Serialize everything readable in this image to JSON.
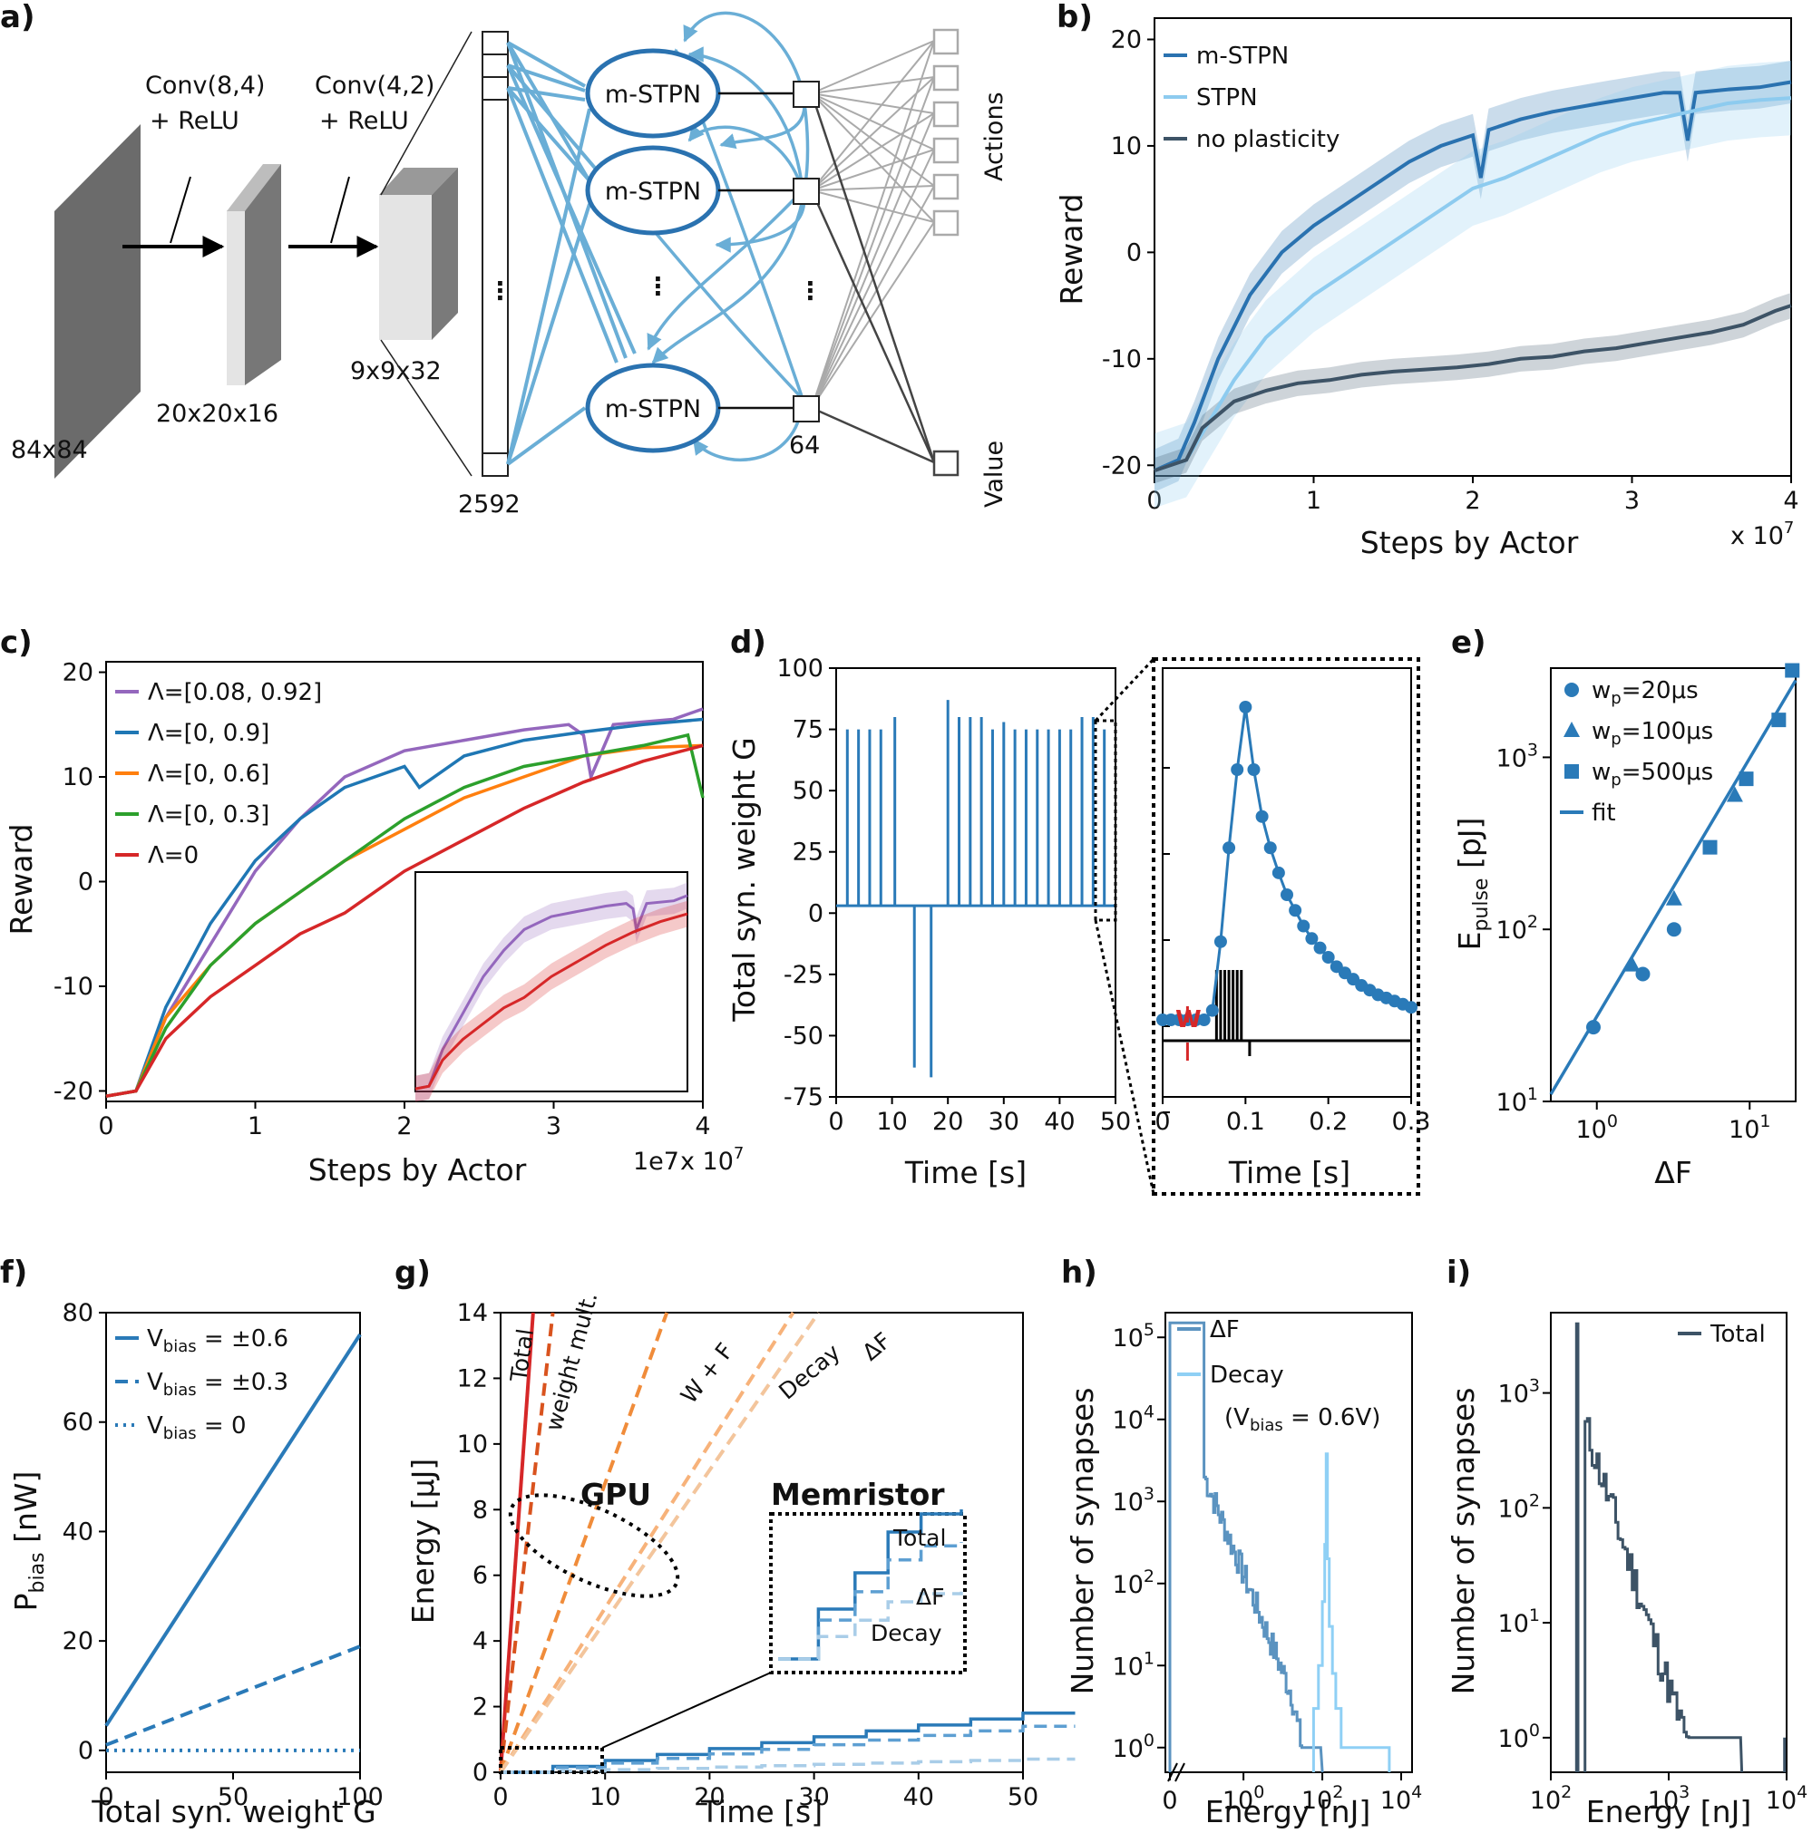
{
  "panels": {
    "a": {
      "label": "a)",
      "conv1": [
        "Conv(8,4)",
        "+ ReLU"
      ],
      "conv2": [
        "Conv(4,2)",
        "+ ReLU"
      ],
      "input_size": "84x84",
      "size1": "20x20x16",
      "size2": "9x9x32",
      "flat_size": "2592",
      "hidden_size": "64",
      "unit_label": "m-STPN",
      "dots": "⋮",
      "actions_label": "Actions",
      "value_label": "Value"
    },
    "b": {
      "label": "b)",
      "xlabel": "Steps by Actor",
      "ylabel": "Reward",
      "exponent": "x 10",
      "exponent_power": "7"
    },
    "c": {
      "label": "c)",
      "xlabel": "Steps by Actor",
      "ylabel": "Reward",
      "offset_text": "1e7",
      "exponent": "x 10",
      "exponent_power": "7"
    },
    "d": {
      "label": "d)",
      "xlabel": "Time [s]",
      "ylabel": "Total syn. weight G",
      "inset_xlabel": "Time [s]",
      "inset_marker": "W"
    },
    "e": {
      "label": "e)",
      "xlabel": "ΔF",
      "ylabel_main": "E",
      "ylabel_sub": "pulse",
      "ylabel_unit": " [pJ]"
    },
    "f": {
      "label": "f)",
      "xlabel": "Total syn. weight G",
      "ylabel_main": "P",
      "ylabel_sub": "bias",
      "ylabel_unit": " [nW]"
    },
    "g": {
      "label": "g)",
      "xlabel": "Time [s]",
      "ylabel": "Energy [μJ]",
      "gpu_label": "GPU",
      "memristor_label": "Memristor",
      "line_labels": [
        "Total",
        "weight mult.",
        "W + F",
        "Decay",
        "ΔF"
      ],
      "inset_labels": [
        "Total",
        "ΔF",
        "Decay"
      ]
    },
    "h": {
      "label": "h)",
      "xlabel": "Energy [nJ]",
      "ylabel": "Number of synapses",
      "decay_note": "(V",
      "decay_note_sub": "bias",
      "decay_note_end": " = 0.6V)"
    },
    "i": {
      "label": "i)",
      "xlabel": "Energy [nJ]",
      "ylabel": "Number of synapses"
    }
  },
  "chart_data": [
    {
      "panel": "b",
      "type": "line",
      "xlim": [
        0,
        4
      ],
      "ylim": [
        -21,
        22
      ],
      "xticks": [
        "0",
        "1",
        "2",
        "3",
        "4"
      ],
      "yticks": [
        "-20",
        "-10",
        "0",
        "10",
        "20"
      ],
      "legend": "top-left",
      "series": [
        {
          "name": "m-STPN",
          "color": "#2a72b0",
          "x": [
            0,
            0.15,
            0.25,
            0.4,
            0.6,
            0.8,
            1.0,
            1.2,
            1.4,
            1.6,
            1.8,
            2.0,
            2.05,
            2.1,
            2.3,
            2.5,
            2.8,
            3.0,
            3.2,
            3.3,
            3.35,
            3.4,
            3.6,
            3.8,
            4.0
          ],
          "y": [
            -20.5,
            -19.5,
            -16,
            -10,
            -4,
            0,
            2.5,
            4.5,
            6.5,
            8.5,
            10,
            11,
            7,
            11.5,
            12.5,
            13.2,
            14,
            14.5,
            15,
            15,
            10.5,
            15,
            15.3,
            15.5,
            16
          ]
        },
        {
          "name": "STPN",
          "color": "#8dcbef",
          "x": [
            0,
            0.2,
            0.3,
            0.5,
            0.7,
            1.0,
            1.2,
            1.4,
            1.6,
            1.8,
            2.0,
            2.2,
            2.5,
            2.8,
            3.0,
            3.3,
            3.6,
            3.8,
            4.0
          ],
          "y": [
            -20.5,
            -19.5,
            -17,
            -12,
            -8,
            -4,
            -2,
            0,
            2,
            4,
            6,
            7,
            9,
            11,
            12,
            13,
            14,
            14.3,
            14.5
          ]
        },
        {
          "name": "no plasticity",
          "color": "#3d5366",
          "x": [
            0,
            0.2,
            0.3,
            0.5,
            0.7,
            0.9,
            1.1,
            1.3,
            1.5,
            1.7,
            1.9,
            2.1,
            2.3,
            2.5,
            2.7,
            2.9,
            3.1,
            3.3,
            3.5,
            3.7,
            3.9,
            4.0
          ],
          "y": [
            -20.5,
            -19.5,
            -16.5,
            -14,
            -13,
            -12.3,
            -12,
            -11.5,
            -11.2,
            -11,
            -10.8,
            -10.5,
            -10,
            -9.8,
            -9.3,
            -9,
            -8.5,
            -8,
            -7.5,
            -6.8,
            -5.5,
            -5
          ]
        }
      ]
    },
    {
      "panel": "c",
      "type": "line",
      "xlim": [
        0,
        4
      ],
      "ylim": [
        -21,
        21
      ],
      "xticks": [
        "0",
        "1",
        "2",
        "3",
        "4"
      ],
      "yticks": [
        "-20",
        "-10",
        "0",
        "10",
        "20"
      ],
      "legend": "top-left",
      "series": [
        {
          "name": "Λ=[0.08, 0.92]",
          "color": "#9467bd",
          "x": [
            0,
            0.2,
            0.4,
            0.7,
            1.0,
            1.3,
            1.6,
            2.0,
            2.4,
            2.8,
            3.1,
            3.2,
            3.25,
            3.4,
            3.8,
            4.0
          ],
          "y": [
            -20.5,
            -20,
            -13,
            -6,
            1,
            6,
            10,
            12.5,
            13.5,
            14.5,
            15,
            14,
            10,
            15,
            15.5,
            16.5
          ]
        },
        {
          "name": "Λ=[0, 0.9]",
          "color": "#1f77b4",
          "x": [
            0,
            0.2,
            0.4,
            0.7,
            1.0,
            1.3,
            1.6,
            2.0,
            2.1,
            2.4,
            2.8,
            3.2,
            3.6,
            4.0
          ],
          "y": [
            -20.5,
            -20,
            -12,
            -4,
            2,
            6,
            9,
            11,
            9,
            12,
            13.5,
            14.3,
            15,
            15.5
          ]
        },
        {
          "name": "Λ=[0, 0.6]",
          "color": "#ff7f0e",
          "x": [
            0,
            0.2,
            0.4,
            0.7,
            1.0,
            1.3,
            1.6,
            2.0,
            2.4,
            2.8,
            3.0,
            3.2,
            3.6,
            4.0
          ],
          "y": [
            -20.5,
            -20,
            -13,
            -8,
            -4,
            -1,
            2,
            5,
            8,
            10,
            11,
            12,
            12.8,
            13
          ]
        },
        {
          "name": "Λ=[0, 0.3]",
          "color": "#2ca02c",
          "x": [
            0,
            0.2,
            0.4,
            0.7,
            1.0,
            1.3,
            1.6,
            2.0,
            2.4,
            2.8,
            3.2,
            3.6,
            3.9,
            4.0
          ],
          "y": [
            -20.5,
            -20,
            -14,
            -8,
            -4,
            -1,
            2,
            6,
            9,
            11,
            12,
            13,
            14,
            8
          ]
        },
        {
          "name": "Λ=0",
          "color": "#d62728",
          "x": [
            0,
            0.2,
            0.4,
            0.7,
            1.0,
            1.3,
            1.6,
            2.0,
            2.4,
            2.8,
            3.2,
            3.6,
            4.0
          ],
          "y": [
            -20.5,
            -20,
            -15,
            -11,
            -8,
            -5,
            -3,
            1,
            4,
            7,
            9.5,
            11.5,
            13
          ]
        }
      ]
    },
    {
      "panel": "d",
      "type": "line",
      "xlim": [
        0,
        50
      ],
      "ylim": [
        -75,
        100
      ],
      "xticks": [
        "0",
        "10",
        "20",
        "30",
        "40",
        "50"
      ],
      "yticks": [
        "-75",
        "-50",
        "-25",
        "0",
        "25",
        "50",
        "75",
        "100"
      ],
      "spike_times": [
        2,
        4,
        6,
        8,
        10.5,
        20,
        22,
        24,
        26,
        28,
        30,
        32,
        34,
        36,
        38,
        40,
        42,
        44,
        46,
        48
      ],
      "spike_heights": [
        75,
        75,
        75,
        75,
        80,
        87,
        80,
        80,
        80,
        75,
        78,
        75,
        75,
        75,
        75,
        75,
        75,
        80,
        80,
        75
      ],
      "baseline": 3,
      "dip_times": [
        14,
        17
      ],
      "dip_values": [
        -63,
        -67
      ],
      "inset": {
        "xlim": [
          0,
          0.3
        ],
        "xticks": [
          "0",
          "0.1",
          "0.2",
          "0.3"
        ],
        "x": [
          0,
          0.01,
          0.02,
          0.03,
          0.04,
          0.05,
          0.06,
          0.07,
          0.08,
          0.09,
          0.1,
          0.11,
          0.12,
          0.13,
          0.14,
          0.15,
          0.16,
          0.17,
          0.18,
          0.19,
          0.2,
          0.21,
          0.22,
          0.23,
          0.24,
          0.25,
          0.26,
          0.27,
          0.28,
          0.29,
          0.3
        ],
        "y": [
          0,
          0,
          0,
          0,
          0,
          0,
          3,
          25,
          55,
          80,
          100,
          80,
          65,
          55,
          47,
          40,
          35,
          30,
          26,
          23,
          20,
          17,
          15,
          13,
          11,
          9.5,
          8,
          7,
          6,
          5,
          4
        ]
      }
    },
    {
      "panel": "e",
      "type": "scatter",
      "xscale": "log",
      "yscale": "log",
      "xlim": [
        0.5,
        20
      ],
      "ylim": [
        10,
        3300
      ],
      "legend": "top-left",
      "series": [
        {
          "name": "wp=20μs",
          "marker": "circle",
          "x": [
            0.95,
            2.0,
            3.2
          ],
          "y": [
            27,
            55,
            100
          ]
        },
        {
          "name": "wp=100μs",
          "marker": "triangle",
          "x": [
            1.7,
            3.2,
            8.0
          ],
          "y": [
            62,
            150,
            600
          ]
        },
        {
          "name": "wp=500μs",
          "marker": "square",
          "x": [
            5.5,
            9.5,
            15.5,
            19
          ],
          "y": [
            300,
            750,
            1650,
            3200
          ]
        },
        {
          "name": "fit",
          "x": [
            0.5,
            20
          ],
          "y": [
            11,
            2800
          ]
        }
      ]
    },
    {
      "panel": "f",
      "type": "line",
      "xlim": [
        0,
        100
      ],
      "ylim": [
        -4,
        80
      ],
      "xticks": [
        "0",
        "50",
        "100"
      ],
      "yticks": [
        "0",
        "20",
        "40",
        "60",
        "80"
      ],
      "legend": "top-left",
      "series": [
        {
          "name": "Vbias = ±0.6",
          "style": "solid",
          "x": [
            0,
            100
          ],
          "y": [
            4.5,
            76
          ]
        },
        {
          "name": "Vbias = ±0.3",
          "style": "dashed",
          "x": [
            0,
            100
          ],
          "y": [
            1,
            19
          ]
        },
        {
          "name": "Vbias = 0",
          "style": "dotted",
          "x": [
            0,
            100
          ],
          "y": [
            0,
            0
          ]
        }
      ]
    },
    {
      "panel": "g",
      "type": "line",
      "xlim": [
        0,
        50
      ],
      "ylim": [
        0,
        14
      ],
      "xticks": [
        "0",
        "10",
        "20",
        "30",
        "40",
        "50"
      ],
      "yticks": [
        "0",
        "2",
        "4",
        "6",
        "8",
        "10",
        "12",
        "14"
      ],
      "gpu_slopes": {
        "Total": 4.5,
        "weight mult.": 2.8,
        "W + F": 0.88,
        "Decay": 0.5,
        "ΔF": 0.46
      },
      "memristor_end": {
        "Total": 1.8,
        "ΔF": 1.4,
        "Decay": 0.4
      }
    },
    {
      "panel": "h",
      "type": "histogram",
      "xscale": "log",
      "yscale": "log",
      "xticks": [
        "0",
        "10^0",
        "10^2",
        "10^4"
      ],
      "yticks": [
        "10^0",
        "10^1",
        "10^2",
        "10^3",
        "10^4",
        "10^5"
      ],
      "legend": "top-right",
      "series": [
        {
          "name": "ΔF",
          "color": "#5b93c0"
        },
        {
          "name": "Decay",
          "color": "#8fd0f5"
        }
      ]
    },
    {
      "panel": "i",
      "type": "histogram",
      "xscale": "log",
      "yscale": "log",
      "xticks": [
        "10^2",
        "10^3",
        "10^4"
      ],
      "yticks": [
        "10^0",
        "10^1",
        "10^2",
        "10^3"
      ],
      "legend": "top-right",
      "series": [
        {
          "name": "Total",
          "color": "#3d5366"
        }
      ]
    }
  ]
}
